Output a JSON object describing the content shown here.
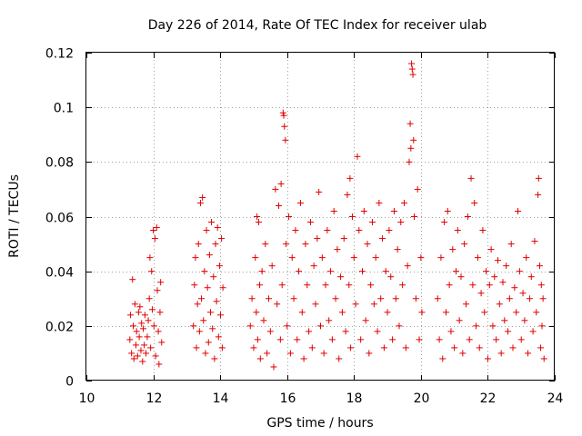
{
  "chart_data": {
    "type": "scatter",
    "title": "Day 226 of 2014, Rate Of TEC Index for receiver ulab",
    "xlabel": "GPS time / hours",
    "ylabel": "ROTI / TECUs",
    "xlim": [
      10,
      24
    ],
    "ylim": [
      0,
      0.12
    ],
    "grid": true,
    "marker": "+",
    "color": "#e00000",
    "x_ticks": [
      "10",
      "12",
      "14",
      "16",
      "18",
      "20",
      "22",
      "24"
    ],
    "y_ticks": [
      "0",
      "0.02",
      "0.04",
      "0.06",
      "0.08",
      "0.1",
      "0.12"
    ],
    "series": [
      {
        "name": "ROTI",
        "points": [
          [
            11.3,
            0.015
          ],
          [
            11.32,
            0.024
          ],
          [
            11.35,
            0.01
          ],
          [
            11.38,
            0.037
          ],
          [
            11.4,
            0.02
          ],
          [
            11.42,
            0.008
          ],
          [
            11.45,
            0.028
          ],
          [
            11.48,
            0.013
          ],
          [
            11.5,
            0.018
          ],
          [
            11.53,
            0.009
          ],
          [
            11.56,
            0.025
          ],
          [
            11.58,
            0.016
          ],
          [
            11.6,
            0.027
          ],
          [
            11.63,
            0.011
          ],
          [
            11.65,
            0.021
          ],
          [
            11.68,
            0.007
          ],
          [
            11.7,
            0.019
          ],
          [
            11.73,
            0.013
          ],
          [
            11.75,
            0.024
          ],
          [
            11.78,
            0.01
          ],
          [
            11.82,
            0.016
          ],
          [
            11.85,
            0.022
          ],
          [
            11.88,
            0.03
          ],
          [
            11.9,
            0.045
          ],
          [
            11.92,
            0.012
          ],
          [
            11.95,
            0.04
          ],
          [
            11.97,
            0.026
          ],
          [
            12.0,
            0.055
          ],
          [
            12.02,
            0.02
          ],
          [
            12.05,
            0.052
          ],
          [
            12.07,
            0.009
          ],
          [
            12.1,
            0.056
          ],
          [
            12.12,
            0.033
          ],
          [
            12.15,
            0.018
          ],
          [
            12.17,
            0.006
          ],
          [
            12.2,
            0.025
          ],
          [
            12.22,
            0.036
          ],
          [
            12.25,
            0.014
          ],
          [
            13.2,
            0.02
          ],
          [
            13.23,
            0.035
          ],
          [
            13.26,
            0.045
          ],
          [
            13.29,
            0.012
          ],
          [
            13.32,
            0.028
          ],
          [
            13.35,
            0.05
          ],
          [
            13.38,
            0.018
          ],
          [
            13.41,
            0.065
          ],
          [
            13.44,
            0.03
          ],
          [
            13.47,
            0.067
          ],
          [
            13.5,
            0.022
          ],
          [
            13.53,
            0.04
          ],
          [
            13.56,
            0.01
          ],
          [
            13.59,
            0.055
          ],
          [
            13.62,
            0.034
          ],
          [
            13.65,
            0.014
          ],
          [
            13.68,
            0.046
          ],
          [
            13.71,
            0.025
          ],
          [
            13.74,
            0.058
          ],
          [
            13.77,
            0.019
          ],
          [
            13.8,
            0.038
          ],
          [
            13.83,
            0.008
          ],
          [
            13.86,
            0.05
          ],
          [
            13.89,
            0.029
          ],
          [
            13.92,
            0.056
          ],
          [
            13.95,
            0.016
          ],
          [
            13.98,
            0.042
          ],
          [
            14.01,
            0.024
          ],
          [
            14.04,
            0.052
          ],
          [
            14.06,
            0.012
          ],
          [
            14.08,
            0.034
          ],
          [
            14.9,
            0.02
          ],
          [
            14.95,
            0.03
          ],
          [
            15.0,
            0.012
          ],
          [
            15.05,
            0.045
          ],
          [
            15.08,
            0.025
          ],
          [
            15.1,
            0.06
          ],
          [
            15.12,
            0.015
          ],
          [
            15.15,
            0.058
          ],
          [
            15.18,
            0.035
          ],
          [
            15.2,
            0.008
          ],
          [
            15.25,
            0.04
          ],
          [
            15.3,
            0.022
          ],
          [
            15.35,
            0.05
          ],
          [
            15.4,
            0.01
          ],
          [
            15.45,
            0.03
          ],
          [
            15.5,
            0.018
          ],
          [
            15.55,
            0.042
          ],
          [
            15.6,
            0.005
          ],
          [
            15.65,
            0.07
          ],
          [
            15.7,
            0.028
          ],
          [
            15.75,
            0.064
          ],
          [
            15.8,
            0.015
          ],
          [
            15.82,
            0.072
          ],
          [
            15.85,
            0.035
          ],
          [
            15.88,
            0.098
          ],
          [
            15.9,
            0.097
          ],
          [
            15.92,
            0.093
          ],
          [
            15.95,
            0.088
          ],
          [
            15.97,
            0.05
          ],
          [
            16.0,
            0.02
          ],
          [
            16.05,
            0.06
          ],
          [
            16.1,
            0.01
          ],
          [
            16.15,
            0.045
          ],
          [
            16.2,
            0.03
          ],
          [
            16.25,
            0.055
          ],
          [
            16.3,
            0.015
          ],
          [
            16.35,
            0.04
          ],
          [
            16.4,
            0.065
          ],
          [
            16.45,
            0.025
          ],
          [
            16.5,
            0.008
          ],
          [
            16.55,
            0.05
          ],
          [
            16.6,
            0.035
          ],
          [
            16.65,
            0.018
          ],
          [
            16.7,
            0.058
          ],
          [
            16.75,
            0.012
          ],
          [
            16.8,
            0.042
          ],
          [
            16.85,
            0.028
          ],
          [
            16.9,
            0.052
          ],
          [
            16.95,
            0.069
          ],
          [
            17.0,
            0.02
          ],
          [
            17.05,
            0.045
          ],
          [
            17.1,
            0.01
          ],
          [
            17.15,
            0.035
          ],
          [
            17.2,
            0.055
          ],
          [
            17.25,
            0.022
          ],
          [
            17.3,
            0.04
          ],
          [
            17.35,
            0.015
          ],
          [
            17.4,
            0.062
          ],
          [
            17.45,
            0.03
          ],
          [
            17.5,
            0.048
          ],
          [
            17.55,
            0.008
          ],
          [
            17.6,
            0.038
          ],
          [
            17.65,
            0.025
          ],
          [
            17.7,
            0.052
          ],
          [
            17.75,
            0.018
          ],
          [
            17.8,
            0.068
          ],
          [
            17.85,
            0.035
          ],
          [
            17.88,
            0.074
          ],
          [
            17.9,
            0.012
          ],
          [
            17.95,
            0.06
          ],
          [
            18.0,
            0.045
          ],
          [
            18.05,
            0.028
          ],
          [
            18.1,
            0.082
          ],
          [
            18.15,
            0.055
          ],
          [
            18.2,
            0.015
          ],
          [
            18.25,
            0.04
          ],
          [
            18.3,
            0.062
          ],
          [
            18.35,
            0.022
          ],
          [
            18.4,
            0.05
          ],
          [
            18.45,
            0.01
          ],
          [
            18.5,
            0.035
          ],
          [
            18.55,
            0.058
          ],
          [
            18.6,
            0.028
          ],
          [
            18.65,
            0.045
          ],
          [
            18.7,
            0.018
          ],
          [
            18.75,
            0.065
          ],
          [
            18.8,
            0.03
          ],
          [
            18.85,
            0.052
          ],
          [
            18.9,
            0.012
          ],
          [
            18.95,
            0.04
          ],
          [
            19.0,
            0.025
          ],
          [
            19.05,
            0.055
          ],
          [
            19.1,
            0.038
          ],
          [
            19.15,
            0.015
          ],
          [
            19.2,
            0.062
          ],
          [
            19.25,
            0.03
          ],
          [
            19.3,
            0.048
          ],
          [
            19.35,
            0.02
          ],
          [
            19.4,
            0.058
          ],
          [
            19.45,
            0.035
          ],
          [
            19.5,
            0.065
          ],
          [
            19.55,
            0.012
          ],
          [
            19.6,
            0.042
          ],
          [
            19.65,
            0.08
          ],
          [
            19.68,
            0.094
          ],
          [
            19.7,
            0.085
          ],
          [
            19.72,
            0.116
          ],
          [
            19.74,
            0.114
          ],
          [
            19.76,
            0.112
          ],
          [
            19.78,
            0.088
          ],
          [
            19.8,
            0.06
          ],
          [
            19.85,
            0.03
          ],
          [
            19.9,
            0.07
          ],
          [
            19.95,
            0.015
          ],
          [
            20.0,
            0.045
          ],
          [
            20.03,
            0.025
          ],
          [
            20.5,
            0.03
          ],
          [
            20.55,
            0.015
          ],
          [
            20.6,
            0.045
          ],
          [
            20.65,
            0.008
          ],
          [
            20.7,
            0.058
          ],
          [
            20.75,
            0.025
          ],
          [
            20.8,
            0.062
          ],
          [
            20.85,
            0.035
          ],
          [
            20.9,
            0.018
          ],
          [
            20.95,
            0.048
          ],
          [
            21.0,
            0.012
          ],
          [
            21.05,
            0.04
          ],
          [
            21.1,
            0.055
          ],
          [
            21.15,
            0.022
          ],
          [
            21.2,
            0.038
          ],
          [
            21.25,
            0.01
          ],
          [
            21.3,
            0.05
          ],
          [
            21.35,
            0.028
          ],
          [
            21.4,
            0.06
          ],
          [
            21.45,
            0.015
          ],
          [
            21.5,
            0.074
          ],
          [
            21.55,
            0.035
          ],
          [
            21.6,
            0.065
          ],
          [
            21.65,
            0.02
          ],
          [
            21.7,
            0.045
          ],
          [
            21.75,
            0.012
          ],
          [
            21.8,
            0.032
          ],
          [
            21.85,
            0.055
          ],
          [
            21.9,
            0.025
          ],
          [
            21.95,
            0.04
          ],
          [
            22.0,
            0.008
          ],
          [
            22.05,
            0.035
          ],
          [
            22.1,
            0.048
          ],
          [
            22.15,
            0.02
          ],
          [
            22.2,
            0.038
          ],
          [
            22.25,
            0.015
          ],
          [
            22.3,
            0.044
          ],
          [
            22.35,
            0.028
          ],
          [
            22.4,
            0.01
          ],
          [
            22.45,
            0.036
          ],
          [
            22.5,
            0.022
          ],
          [
            22.55,
            0.042
          ],
          [
            22.6,
            0.018
          ],
          [
            22.65,
            0.03
          ],
          [
            22.7,
            0.05
          ],
          [
            22.75,
            0.012
          ],
          [
            22.8,
            0.034
          ],
          [
            22.85,
            0.025
          ],
          [
            22.9,
            0.062
          ],
          [
            22.95,
            0.04
          ],
          [
            23.0,
            0.015
          ],
          [
            23.05,
            0.032
          ],
          [
            23.1,
            0.022
          ],
          [
            23.15,
            0.045
          ],
          [
            23.2,
            0.01
          ],
          [
            23.25,
            0.03
          ],
          [
            23.3,
            0.038
          ],
          [
            23.35,
            0.018
          ],
          [
            23.4,
            0.051
          ],
          [
            23.45,
            0.025
          ],
          [
            23.5,
            0.068
          ],
          [
            23.52,
            0.074
          ],
          [
            23.55,
            0.042
          ],
          [
            23.58,
            0.012
          ],
          [
            23.6,
            0.035
          ],
          [
            23.62,
            0.02
          ],
          [
            23.65,
            0.03
          ],
          [
            23.68,
            0.008
          ]
        ]
      }
    ]
  }
}
